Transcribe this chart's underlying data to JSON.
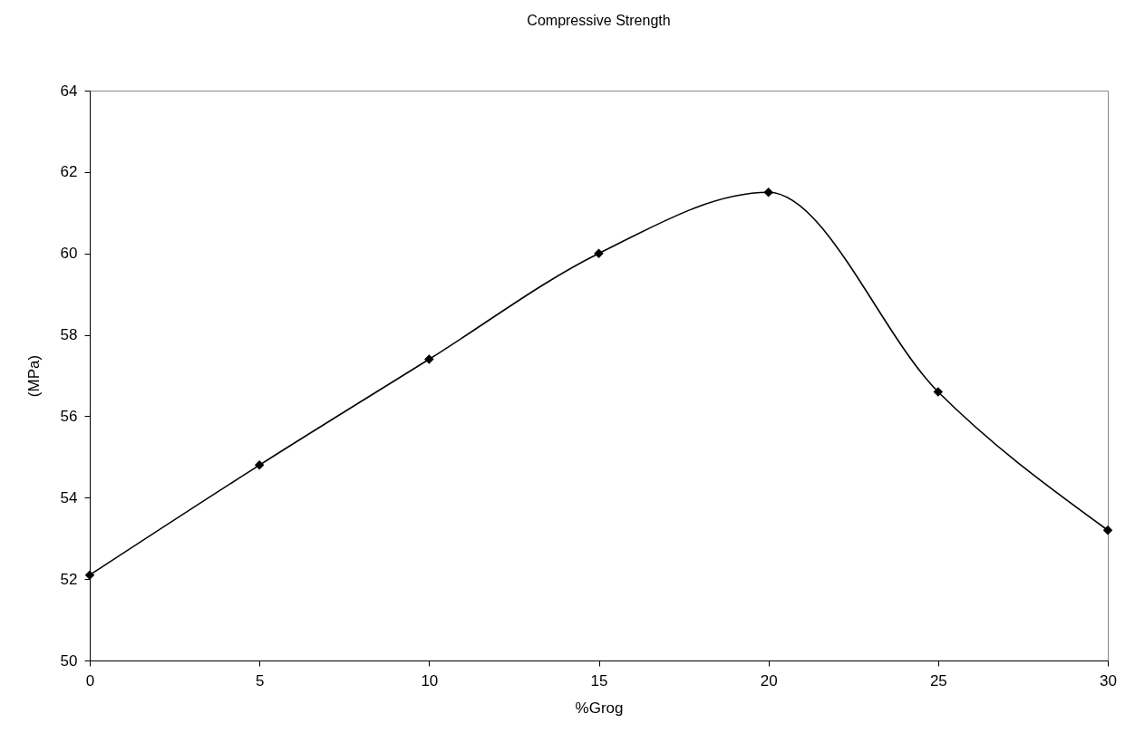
{
  "chart_data": {
    "type": "line",
    "title": "Compressive Strength",
    "xlabel": "%Grog",
    "ylabel": "(MPa)",
    "x": [
      0,
      5,
      10,
      15,
      20,
      25,
      30
    ],
    "series": [
      {
        "color": "#000000",
        "values": [
          52.1,
          54.8,
          57.4,
          60.0,
          61.5,
          56.6,
          53.2
        ]
      }
    ],
    "xlim": [
      0,
      30
    ],
    "xticks": [
      0,
      5,
      10,
      15,
      20,
      25,
      30
    ],
    "ylim": [
      50,
      64
    ],
    "yticks": [
      50,
      52,
      54,
      56,
      58,
      60,
      62,
      64
    ],
    "grid": false,
    "legend": false,
    "marker": "diamond",
    "line_style": "solid"
  }
}
